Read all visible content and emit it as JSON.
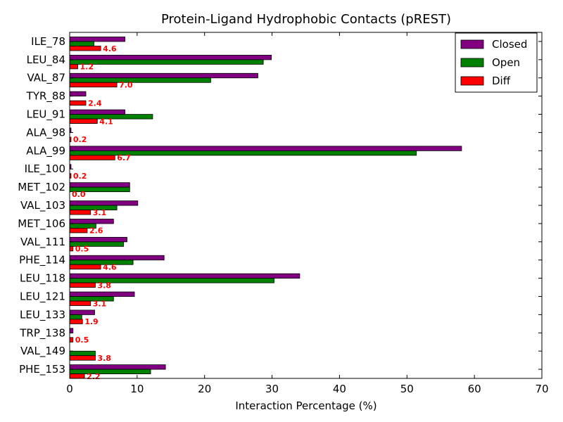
{
  "chart_data": {
    "type": "bar",
    "orientation": "horizontal",
    "title": "Protein-Ligand Hydrophobic Contacts (pREST)",
    "xlabel": "Interaction Percentage (%)",
    "ylabel": "",
    "xlim": [
      0,
      70
    ],
    "xticks": [
      0,
      10,
      20,
      30,
      40,
      50,
      60,
      70
    ],
    "grid": false,
    "legend_position": "top-right",
    "categories": [
      "ILE_78",
      "LEU_84",
      "VAL_87",
      "TYR_88",
      "LEU_91",
      "ALA_98",
      "ALA_99",
      "ILE_100",
      "MET_102",
      "VAL_103",
      "MET_106",
      "VAL_111",
      "PHE_114",
      "LEU_118",
      "LEU_121",
      "LEU_133",
      "TRP_138",
      "VAL_149",
      "PHE_153"
    ],
    "series": [
      {
        "name": "Closed",
        "color": "#800080",
        "values": [
          8.2,
          29.9,
          27.9,
          2.4,
          8.2,
          0.2,
          58.1,
          0.2,
          8.9,
          10.1,
          6.5,
          8.5,
          14.0,
          34.1,
          9.6,
          3.7,
          0.5,
          0.0,
          14.2
        ]
      },
      {
        "name": "Open",
        "color": "#008000",
        "values": [
          3.6,
          28.7,
          20.9,
          0.0,
          12.3,
          0.0,
          51.4,
          0.0,
          8.9,
          7.0,
          3.9,
          8.0,
          9.4,
          30.3,
          6.5,
          1.8,
          0.0,
          3.8,
          12.0
        ]
      },
      {
        "name": "Diff",
        "color": "#ff0000",
        "values": [
          4.6,
          1.2,
          7.0,
          2.4,
          4.1,
          0.2,
          6.7,
          0.2,
          0.0,
          3.1,
          2.6,
          0.5,
          4.6,
          3.8,
          3.1,
          1.9,
          0.5,
          3.8,
          2.2
        ]
      }
    ],
    "diff_labels": [
      "4.6",
      "1.2",
      "7.0",
      "2.4",
      "4.1",
      "0.2",
      "6.7",
      "0.2",
      "0.0",
      "3.1",
      "2.6",
      "0.5",
      "4.6",
      "3.8",
      "3.1",
      "1.9",
      "0.5",
      "3.8",
      "2.2"
    ],
    "diff_label_color": "#ff0000"
  }
}
